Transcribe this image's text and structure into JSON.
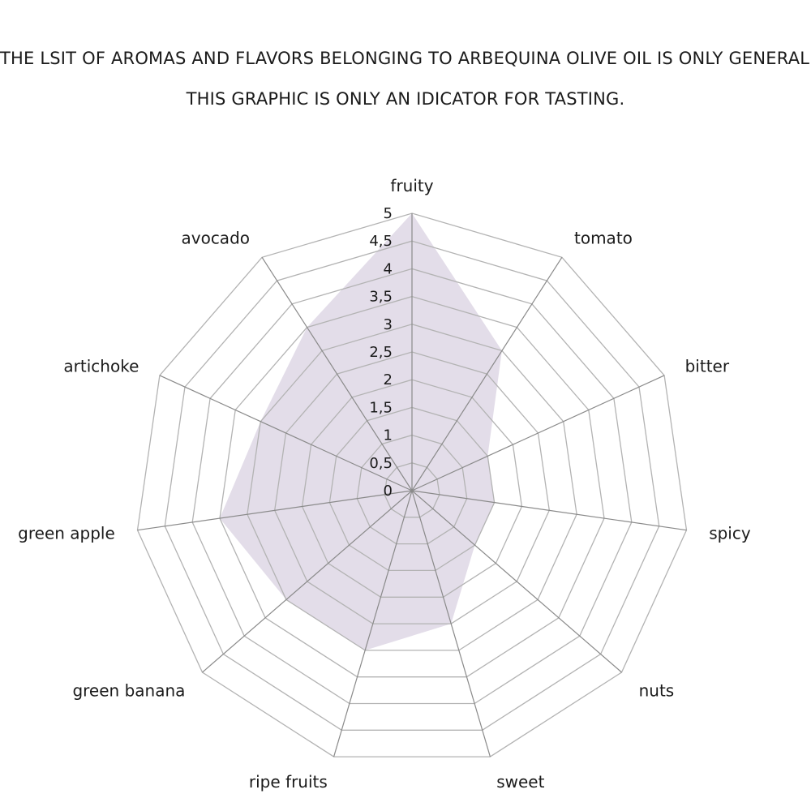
{
  "chart_data": {
    "type": "radar",
    "title_lines": [
      "THE LSIT OF AROMAS AND FLAVORS BELONGING TO ARBEQUINA OLIVE OIL IS ONLY GENERAL.",
      "THIS GRAPHIC IS ONLY AN IDICATOR FOR TASTING."
    ],
    "categories": [
      "fruity",
      "tomato",
      "bitter",
      "spicy",
      "nuts",
      "sweet",
      "ripe fruits",
      "green banana",
      "green apple",
      "artichoke",
      "avocado"
    ],
    "values": [
      5,
      3,
      1.5,
      1.5,
      1.5,
      2.5,
      3,
      3,
      3.5,
      3,
      3.5
    ],
    "rmin": 0,
    "rmax": 5,
    "ticks": [
      "0",
      "0,5",
      "1",
      "1,5",
      "2",
      "2,5",
      "3",
      "3,5",
      "4",
      "4,5",
      "5"
    ],
    "fill_color": "#e3dde9",
    "grid_color": "#b3b3b3",
    "grid": true,
    "legend": "none"
  }
}
